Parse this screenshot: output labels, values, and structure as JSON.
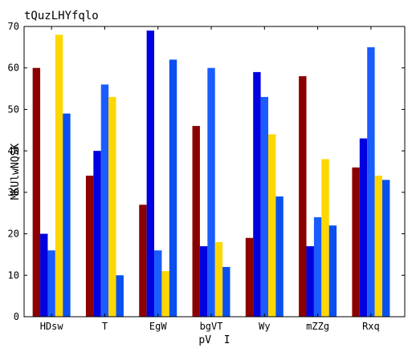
{
  "chart_data": {
    "type": "bar",
    "title": "tQuzLHYfqlo",
    "xlabel": "pV  I",
    "ylabel": "MKUlwNQSK",
    "ylim": [
      0,
      70
    ],
    "yticks": [
      0,
      10,
      20,
      30,
      40,
      50,
      60,
      70
    ],
    "grid": false,
    "legend": "none",
    "categories": [
      "HDsw",
      "T",
      "EgW",
      "bgVT",
      "Wy",
      "mZZg",
      "Rxq"
    ],
    "series": [
      {
        "color": "#8b0000",
        "values": [
          60,
          34,
          27,
          46,
          19,
          58,
          36
        ]
      },
      {
        "color": "#0000e0",
        "values": [
          20,
          40,
          69,
          17,
          59,
          17,
          43
        ]
      },
      {
        "color": "#1a5cff",
        "values": [
          16,
          56,
          16,
          60,
          53,
          24,
          65
        ]
      },
      {
        "color": "#ffd700",
        "values": [
          68,
          53,
          11,
          18,
          44,
          38,
          34
        ]
      },
      {
        "color": "#0a50f0",
        "values": [
          49,
          10,
          62,
          12,
          29,
          22,
          33
        ]
      }
    ]
  }
}
